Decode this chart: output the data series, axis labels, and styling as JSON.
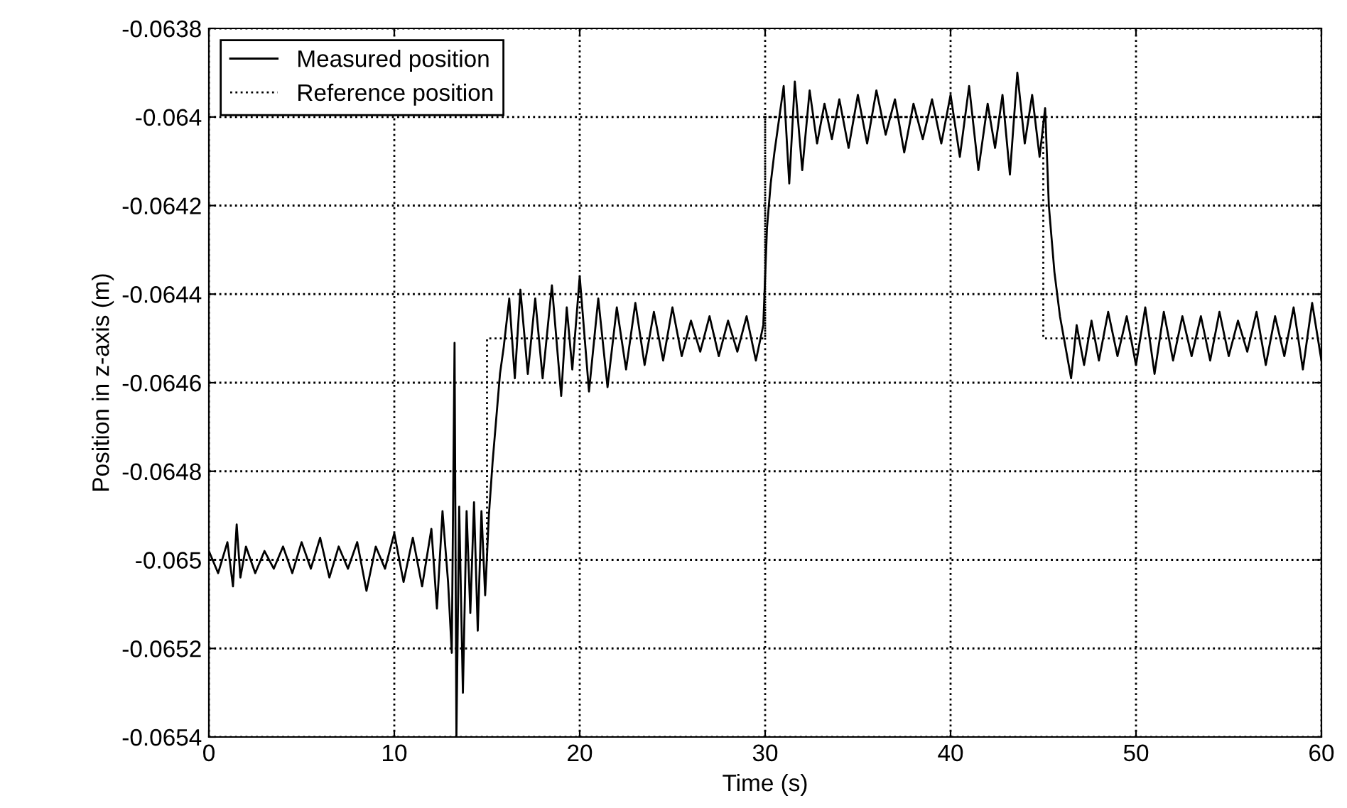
{
  "chart_data": {
    "type": "line",
    "xlabel": "Time (s)",
    "ylabel": "Position in z-axis (m)",
    "xlim": [
      0,
      60
    ],
    "xticks": [
      0,
      10,
      20,
      30,
      40,
      50,
      60
    ],
    "ylim": [
      -0.0654,
      -0.0638
    ],
    "yticks": [
      -0.0654,
      -0.0652,
      -0.065,
      -0.0648,
      -0.0646,
      -0.0644,
      -0.0642,
      -0.064,
      -0.0638
    ],
    "grid": true,
    "legend": "top left",
    "series": [
      {
        "name": "Measured position",
        "color": "#000000",
        "line_style": "solid",
        "x": [
          0,
          0.5,
          1,
          1.3,
          1.5,
          1.7,
          2,
          2.5,
          3,
          3.5,
          4,
          4.5,
          5,
          5.5,
          6,
          6.5,
          7,
          7.5,
          8,
          8.5,
          9,
          9.5,
          10,
          10.5,
          11,
          11.5,
          12,
          12.3,
          12.6,
          12.9,
          13.1,
          13.25,
          13.35,
          13.5,
          13.7,
          13.9,
          14.1,
          14.3,
          14.5,
          14.7,
          14.9,
          15.1,
          15.3,
          15.5,
          15.7,
          15.9,
          16.2,
          16.5,
          16.8,
          17.2,
          17.6,
          18,
          18.5,
          19,
          19.3,
          19.6,
          20,
          20.5,
          21,
          21.5,
          22,
          22.5,
          23,
          23.5,
          24,
          24.5,
          25,
          25.5,
          26,
          26.5,
          27,
          27.5,
          28,
          28.5,
          29,
          29.5,
          29.9,
          30.1,
          30.3,
          30.5,
          30.7,
          31,
          31.3,
          31.6,
          32,
          32.4,
          32.8,
          33.2,
          33.6,
          34,
          34.5,
          35,
          35.5,
          36,
          36.5,
          37,
          37.5,
          38,
          38.5,
          39,
          39.5,
          40,
          40.5,
          41,
          41.5,
          42,
          42.4,
          42.8,
          43.2,
          43.6,
          44,
          44.4,
          44.8,
          45.1,
          45.3,
          45.6,
          45.9,
          46.2,
          46.5,
          46.8,
          47.2,
          47.6,
          48,
          48.5,
          49,
          49.5,
          50,
          50.5,
          51,
          51.5,
          52,
          52.5,
          53,
          53.5,
          54,
          54.5,
          55,
          55.5,
          56,
          56.5,
          57,
          57.5,
          58,
          58.5,
          59,
          59.5,
          60
        ],
        "values": [
          -0.06498,
          -0.06503,
          -0.06496,
          -0.06506,
          -0.06492,
          -0.06504,
          -0.06497,
          -0.06503,
          -0.06498,
          -0.06502,
          -0.06497,
          -0.06503,
          -0.06496,
          -0.06502,
          -0.06495,
          -0.06504,
          -0.06497,
          -0.06502,
          -0.06496,
          -0.06507,
          -0.06497,
          -0.06502,
          -0.06494,
          -0.06505,
          -0.06495,
          -0.06506,
          -0.06493,
          -0.06511,
          -0.06489,
          -0.06505,
          -0.06521,
          -0.06451,
          -0.0654,
          -0.06488,
          -0.0653,
          -0.06489,
          -0.06512,
          -0.06487,
          -0.06516,
          -0.06489,
          -0.06508,
          -0.0649,
          -0.06478,
          -0.06468,
          -0.06458,
          -0.06452,
          -0.06441,
          -0.06459,
          -0.06439,
          -0.06458,
          -0.06441,
          -0.06459,
          -0.06438,
          -0.06463,
          -0.06443,
          -0.06457,
          -0.06436,
          -0.06462,
          -0.06441,
          -0.06461,
          -0.06443,
          -0.06457,
          -0.06442,
          -0.06456,
          -0.06444,
          -0.06455,
          -0.06443,
          -0.06454,
          -0.06446,
          -0.06453,
          -0.06445,
          -0.06454,
          -0.06446,
          -0.06453,
          -0.06445,
          -0.06455,
          -0.06447,
          -0.06425,
          -0.06415,
          -0.06408,
          -0.06402,
          -0.06393,
          -0.06415,
          -0.06392,
          -0.06412,
          -0.06394,
          -0.06406,
          -0.06397,
          -0.06405,
          -0.06396,
          -0.06407,
          -0.06395,
          -0.06406,
          -0.06394,
          -0.06404,
          -0.06396,
          -0.06408,
          -0.06397,
          -0.06405,
          -0.06396,
          -0.06406,
          -0.06395,
          -0.06409,
          -0.06393,
          -0.06412,
          -0.06397,
          -0.06407,
          -0.06395,
          -0.06413,
          -0.0639,
          -0.06406,
          -0.06395,
          -0.06409,
          -0.06398,
          -0.0642,
          -0.06435,
          -0.06445,
          -0.06452,
          -0.06459,
          -0.06447,
          -0.06456,
          -0.06446,
          -0.06455,
          -0.06444,
          -0.06454,
          -0.06445,
          -0.06456,
          -0.06443,
          -0.06458,
          -0.06444,
          -0.06455,
          -0.06445,
          -0.06454,
          -0.06445,
          -0.06455,
          -0.06444,
          -0.06454,
          -0.06446,
          -0.06453,
          -0.06444,
          -0.06456,
          -0.06445,
          -0.06454,
          -0.06443,
          -0.06457,
          -0.06442,
          -0.06455
        ]
      },
      {
        "name": "Reference position",
        "color": "#000000",
        "line_style": "dotted",
        "x": [
          0,
          15,
          15,
          30,
          30,
          45,
          45,
          60
        ],
        "values": [
          -0.065,
          -0.065,
          -0.0645,
          -0.0645,
          -0.064,
          -0.064,
          -0.0645,
          -0.0645
        ]
      }
    ]
  }
}
